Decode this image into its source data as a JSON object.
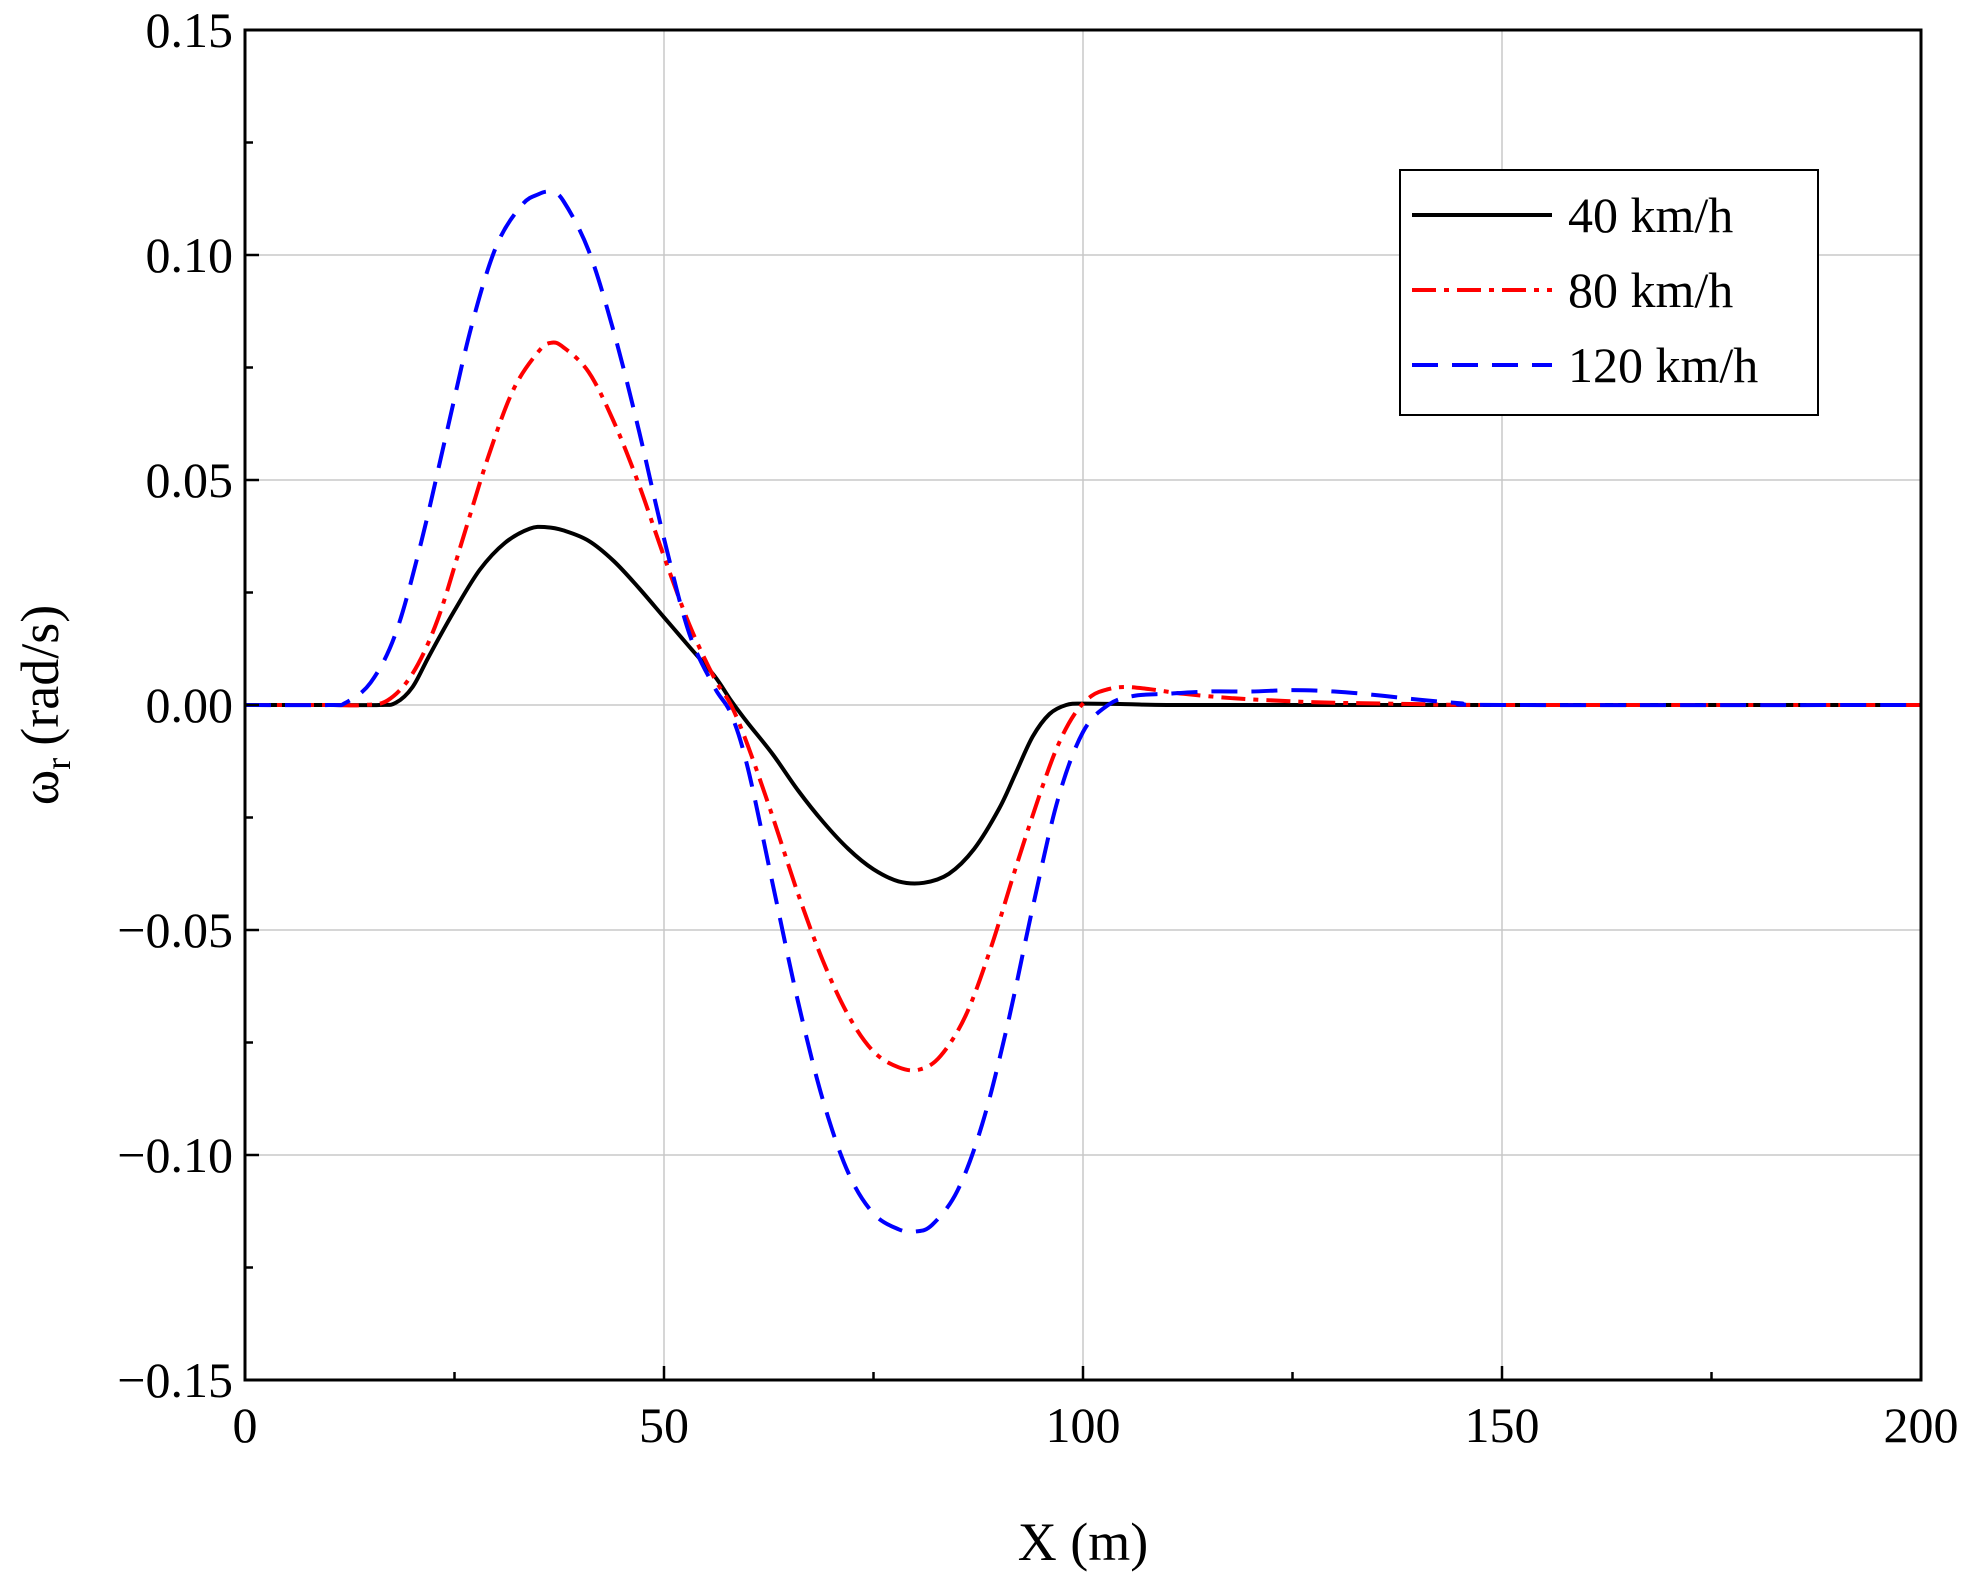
{
  "chart_data": {
    "type": "line",
    "title": "",
    "xlabel": "X (m)",
    "ylabel_symbol": "ω",
    "ylabel_subscript": "r",
    "ylabel_unit": "(rad/s)",
    "xlim": [
      0,
      200
    ],
    "ylim": [
      -0.15,
      0.15
    ],
    "grid": true,
    "legend_position": "top-right",
    "x_ticks": [
      0,
      50,
      100,
      150,
      200
    ],
    "x_tick_labels": [
      "0",
      "50",
      "100",
      "150",
      "200"
    ],
    "x_minor_ticks": [
      25,
      75,
      125,
      175
    ],
    "y_ticks": [
      0.15,
      0.1,
      0.05,
      0.0,
      -0.05,
      -0.1,
      -0.15
    ],
    "y_tick_labels": [
      "0.15",
      "0.10",
      "0.05",
      "0.00",
      "−0.05",
      "−0.10",
      "−0.15"
    ],
    "y_minor_ticks": [
      0.125,
      0.075,
      0.025,
      -0.025,
      -0.075,
      -0.125
    ],
    "series": [
      {
        "name": "40 km/h",
        "color": "#000000",
        "dash": "solid",
        "x": [
          0,
          10,
          16,
          18,
          20,
          22,
          25,
          28,
          31,
          34,
          36,
          38,
          41,
          44,
          47,
          50,
          53,
          56,
          58,
          60,
          63,
          66,
          69,
          72,
          75,
          78,
          81,
          84,
          87,
          90,
          92,
          94,
          96,
          98,
          100,
          105,
          110,
          120,
          140,
          160,
          180,
          200
        ],
        "y": [
          0,
          0,
          0,
          0.0005,
          0.004,
          0.011,
          0.021,
          0.03,
          0.036,
          0.0392,
          0.0395,
          0.0388,
          0.0365,
          0.032,
          0.026,
          0.0195,
          0.013,
          0.0065,
          0.001,
          -0.004,
          -0.011,
          -0.019,
          -0.026,
          -0.032,
          -0.0365,
          -0.0392,
          -0.0395,
          -0.0375,
          -0.032,
          -0.023,
          -0.015,
          -0.007,
          -0.002,
          0.0,
          0.0003,
          0.0002,
          0.0,
          0,
          0,
          0,
          0,
          0
        ]
      },
      {
        "name": "80 km/h",
        "color": "#ff0000",
        "dash": "dashdot",
        "x": [
          0,
          10,
          14,
          17,
          20,
          23,
          26,
          29,
          32,
          35,
          36.5,
          38,
          41,
          44,
          47,
          50,
          53,
          56,
          58,
          60,
          63,
          66,
          69,
          72,
          75,
          78,
          80.5,
          83,
          86,
          89,
          92,
          95,
          97,
          99,
          101,
          103,
          105,
          108,
          112,
          118,
          125,
          130,
          140,
          150,
          200
        ],
        "y": [
          0,
          0,
          0,
          0.001,
          0.007,
          0.019,
          0.037,
          0.055,
          0.07,
          0.0785,
          0.0805,
          0.0795,
          0.074,
          0.063,
          0.049,
          0.033,
          0.018,
          0.006,
          0.0,
          -0.009,
          -0.025,
          -0.042,
          -0.057,
          -0.069,
          -0.077,
          -0.0805,
          -0.081,
          -0.078,
          -0.069,
          -0.054,
          -0.036,
          -0.019,
          -0.009,
          -0.002,
          0.002,
          0.0035,
          0.004,
          0.0035,
          0.0025,
          0.0015,
          0.0008,
          0.0005,
          0.0002,
          0,
          0
        ]
      },
      {
        "name": "120 km/h",
        "color": "#0000ff",
        "dash": "dashed",
        "x": [
          0,
          10,
          12,
          15,
          18,
          21,
          24,
          27,
          30,
          33,
          35,
          36.5,
          38,
          41,
          44,
          47,
          50,
          53,
          56,
          58,
          60,
          63,
          66,
          69,
          72,
          75,
          78,
          80,
          82,
          85,
          88,
          91,
          94,
          97,
          100,
          103,
          106,
          110,
          115,
          120,
          125,
          130,
          135,
          140,
          145,
          150,
          200
        ],
        "y": [
          0,
          0,
          0.0005,
          0.005,
          0.016,
          0.036,
          0.06,
          0.084,
          0.102,
          0.111,
          0.1135,
          0.114,
          0.112,
          0.101,
          0.083,
          0.061,
          0.037,
          0.016,
          0.004,
          -0.002,
          -0.014,
          -0.04,
          -0.066,
          -0.088,
          -0.104,
          -0.113,
          -0.1165,
          -0.117,
          -0.1155,
          -0.108,
          -0.093,
          -0.071,
          -0.045,
          -0.021,
          -0.006,
          0.0,
          0.002,
          0.0025,
          0.003,
          0.003,
          0.0033,
          0.003,
          0.0022,
          0.0012,
          0.0004,
          0,
          0
        ]
      }
    ]
  }
}
